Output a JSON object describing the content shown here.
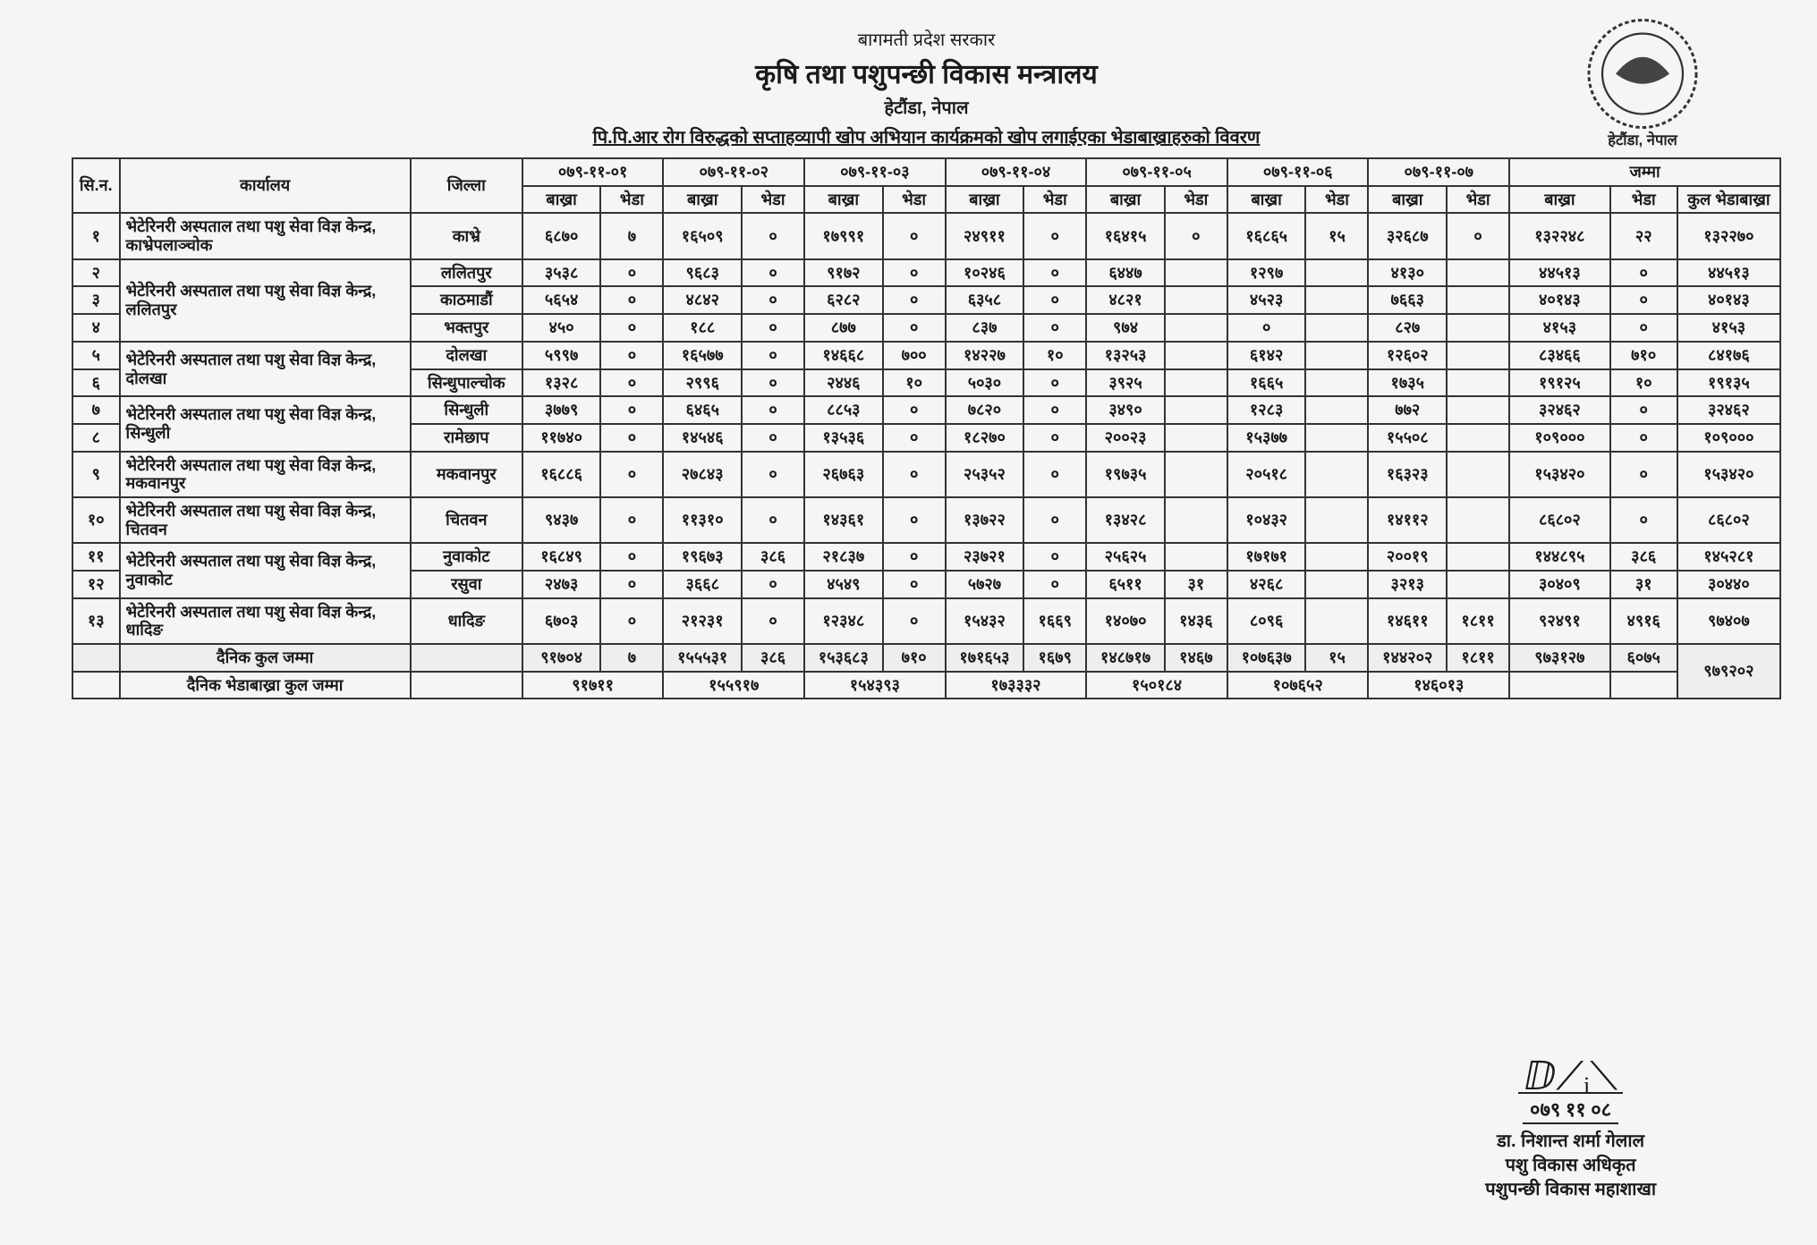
{
  "header": {
    "gov": "बागमती प्रदेश सरकार",
    "ministry": "कृषि तथा पशुपन्छी विकास मन्त्रालय",
    "place": "हेटौंडा, नेपाल",
    "subtitle": "पि.पि.आर रोग विरुद्धको सप्ताहव्यापी खोप अभियान कार्यक्रमको खोप लगाईएका भेडाबाख्राहरुको विवरण",
    "emblem_caption": "हेटौंडा, नेपाल"
  },
  "columns": {
    "sn": "सि.न.",
    "office": "कार्यालय",
    "district": "जिल्ला",
    "dates": [
      "०७९-११-०१",
      "०७९-११-०२",
      "०७९-११-०३",
      "०७९-११-०४",
      "०७९-११-०५",
      "०७९-११-०६",
      "०७९-११-०७"
    ],
    "total": "जम्मा",
    "bakhra": "बाख्रा",
    "bheda": "भेडा",
    "kul": "कुल भेडाबाख्रा"
  },
  "rows": [
    {
      "sn": "१",
      "office": "भेटेरिनरी अस्पताल तथा पशु सेवा विज्ञ केन्द्र, काभ्रेपलाञ्चोक",
      "district": "काभ्रे",
      "d": [
        [
          "६८७०",
          "७"
        ],
        [
          "१६५०९",
          "०"
        ],
        [
          "१७९९१",
          "०"
        ],
        [
          "२४९११",
          "०"
        ],
        [
          "१६४१५",
          "०"
        ],
        [
          "१६८६५",
          "१५"
        ],
        [
          "३२६८७",
          "०"
        ]
      ],
      "tot": [
        "१३२२४८",
        "२२",
        "१३२२७०"
      ]
    },
    {
      "sn": "२",
      "office": "भेटेरिनरी अस्पताल तथा पशु सेवा विज्ञ केन्द्र, ललितपुर",
      "district": "ललितपुर",
      "rowspan_office": 3,
      "d": [
        [
          "३५३८",
          "०"
        ],
        [
          "९६८३",
          "०"
        ],
        [
          "९१७२",
          "०"
        ],
        [
          "१०२४६",
          "०"
        ],
        [
          "६४४७",
          ""
        ],
        [
          "१२९७",
          ""
        ],
        [
          "४१३०",
          ""
        ]
      ],
      "tot": [
        "४४५१३",
        "०",
        "४४५१३"
      ]
    },
    {
      "sn": "३",
      "district": "काठमाडौं",
      "d": [
        [
          "५६५४",
          "०"
        ],
        [
          "४८४२",
          "०"
        ],
        [
          "६२८२",
          "०"
        ],
        [
          "६३५८",
          "०"
        ],
        [
          "४८२१",
          ""
        ],
        [
          "४५२३",
          ""
        ],
        [
          "७६६३",
          ""
        ]
      ],
      "tot": [
        "४०१४३",
        "०",
        "४०१४३"
      ]
    },
    {
      "sn": "४",
      "district": "भक्तपुर",
      "d": [
        [
          "४५०",
          "०"
        ],
        [
          "१८८",
          "०"
        ],
        [
          "८७७",
          "०"
        ],
        [
          "८३७",
          "०"
        ],
        [
          "९७४",
          ""
        ],
        [
          "०",
          ""
        ],
        [
          "८२७",
          ""
        ]
      ],
      "tot": [
        "४१५३",
        "०",
        "४१५३"
      ]
    },
    {
      "sn": "५",
      "office": "भेटेरिनरी अस्पताल तथा पशु सेवा विज्ञ केन्द्र, दोलखा",
      "district": "दोलखा",
      "rowspan_office": 2,
      "d": [
        [
          "५९९७",
          "०"
        ],
        [
          "१६५७७",
          "०"
        ],
        [
          "१४६६८",
          "७००"
        ],
        [
          "१४२२७",
          "१०"
        ],
        [
          "१३२५३",
          ""
        ],
        [
          "६१४२",
          ""
        ],
        [
          "१२६०२",
          ""
        ]
      ],
      "tot": [
        "८३४६६",
        "७१०",
        "८४१७६"
      ]
    },
    {
      "sn": "६",
      "district": "सिन्धुपाल्चोक",
      "d": [
        [
          "१३२८",
          "०"
        ],
        [
          "२९९६",
          "०"
        ],
        [
          "२४४६",
          "१०"
        ],
        [
          "५०३०",
          "०"
        ],
        [
          "३९२५",
          ""
        ],
        [
          "१६६५",
          ""
        ],
        [
          "१७३५",
          ""
        ]
      ],
      "tot": [
        "१९१२५",
        "१०",
        "१९१३५"
      ]
    },
    {
      "sn": "७",
      "office": "भेटेरिनरी अस्पताल तथा पशु सेवा विज्ञ केन्द्र, सिन्धुली",
      "district": "सिन्धुली",
      "rowspan_office": 2,
      "d": [
        [
          "३७७९",
          "०"
        ],
        [
          "६४६५",
          "०"
        ],
        [
          "८८५३",
          "०"
        ],
        [
          "७८२०",
          "०"
        ],
        [
          "३४९०",
          ""
        ],
        [
          "१२८३",
          ""
        ],
        [
          "७७२",
          ""
        ]
      ],
      "tot": [
        "३२४६२",
        "०",
        "३२४६२"
      ]
    },
    {
      "sn": "८",
      "district": "रामेछाप",
      "d": [
        [
          "११७४०",
          "०"
        ],
        [
          "१४५४६",
          "०"
        ],
        [
          "१३५३६",
          "०"
        ],
        [
          "१८२७०",
          "०"
        ],
        [
          "२००२३",
          ""
        ],
        [
          "१५३७७",
          ""
        ],
        [
          "१५५०८",
          ""
        ]
      ],
      "tot": [
        "१०९०००",
        "०",
        "१०९०००"
      ]
    },
    {
      "sn": "९",
      "office": "भेटेरिनरी अस्पताल तथा पशु सेवा विज्ञ केन्द्र, मकवानपुर",
      "district": "मकवानपुर",
      "d": [
        [
          "१६८८६",
          "०"
        ],
        [
          "२७८४३",
          "०"
        ],
        [
          "२६७६३",
          "०"
        ],
        [
          "२५३५२",
          "०"
        ],
        [
          "१९७३५",
          ""
        ],
        [
          "२०५१८",
          ""
        ],
        [
          "१६३२३",
          ""
        ]
      ],
      "tot": [
        "१५३४२०",
        "०",
        "१५३४२०"
      ]
    },
    {
      "sn": "१०",
      "office": "भेटेरिनरी अस्पताल तथा पशु सेवा विज्ञ केन्द्र,  चितवन",
      "district": "चितवन",
      "d": [
        [
          "९४३७",
          "०"
        ],
        [
          "११३१०",
          "०"
        ],
        [
          "१४३६१",
          "०"
        ],
        [
          "१३७२२",
          "०"
        ],
        [
          "१३४२८",
          ""
        ],
        [
          "१०४३२",
          ""
        ],
        [
          "१४११२",
          ""
        ]
      ],
      "tot": [
        "८६८०२",
        "०",
        "८६८०२"
      ]
    },
    {
      "sn": "११",
      "office": "भेटेरिनरी अस्पताल तथा पशु सेवा विज्ञ केन्द्र, नुवाकोट",
      "district": "नुवाकोट",
      "rowspan_office": 2,
      "d": [
        [
          "१६८४९",
          "०"
        ],
        [
          "१९६७३",
          "३८६"
        ],
        [
          "२१८३७",
          "०"
        ],
        [
          "२३७२१",
          "०"
        ],
        [
          "२५६२५",
          ""
        ],
        [
          "१७१७१",
          ""
        ],
        [
          "२००१९",
          ""
        ]
      ],
      "tot": [
        "१४४८९५",
        "३८६",
        "१४५२८१"
      ]
    },
    {
      "sn": "१२",
      "district": "रसुवा",
      "d": [
        [
          "२४७३",
          "०"
        ],
        [
          "३६६८",
          "०"
        ],
        [
          "४५४९",
          "०"
        ],
        [
          "५७२७",
          "०"
        ],
        [
          "६५११",
          "३१"
        ],
        [
          "४२६८",
          ""
        ],
        [
          "३२१३",
          ""
        ]
      ],
      "tot": [
        "३०४०९",
        "३१",
        "३०४४०"
      ]
    },
    {
      "sn": "१३",
      "office": "भेटेरिनरी अस्पताल तथा पशु सेवा विज्ञ केन्द्र, धादिङ",
      "district": "धादिङ",
      "d": [
        [
          "६७०३",
          "०"
        ],
        [
          "२१२३१",
          "०"
        ],
        [
          "१२३४८",
          "०"
        ],
        [
          "१५४३२",
          "१६६९"
        ],
        [
          "१४०७०",
          "१४३६"
        ],
        [
          "८०९६",
          ""
        ],
        [
          "१४६११",
          "१८११"
        ]
      ],
      "tot": [
        "९२४९१",
        "४९१६",
        "९७४०७"
      ]
    }
  ],
  "daily_total": {
    "label": "दैनिक कुल जम्मा",
    "d": [
      [
        "९१७०४",
        "७"
      ],
      [
        "१५५५३१",
        "३८६"
      ],
      [
        "१५३६८३",
        "७१०"
      ],
      [
        "१७१६५३",
        "१६७९"
      ],
      [
        "१४८७१७",
        "१४६७"
      ],
      [
        "१०७६३७",
        "१५"
      ],
      [
        "१४४२०२",
        "१८११"
      ]
    ],
    "tot": [
      "९७३१२७",
      "६०७५",
      "९७९२०२"
    ]
  },
  "grand_daily": {
    "label": "दैनिक भेडाबाख्रा कुल जम्मा",
    "vals": [
      "९१७११",
      "१५५९१७",
      "१५४३९३",
      "१७३३३२",
      "१५०१८४",
      "१०७६५२",
      "१४६०१३"
    ]
  },
  "signature": {
    "name": "डा. निशान्त शर्मा गेलाल",
    "post1": "पशु विकास अधिकृत",
    "post2": "पशुपन्छी विकास महाशाखा"
  }
}
